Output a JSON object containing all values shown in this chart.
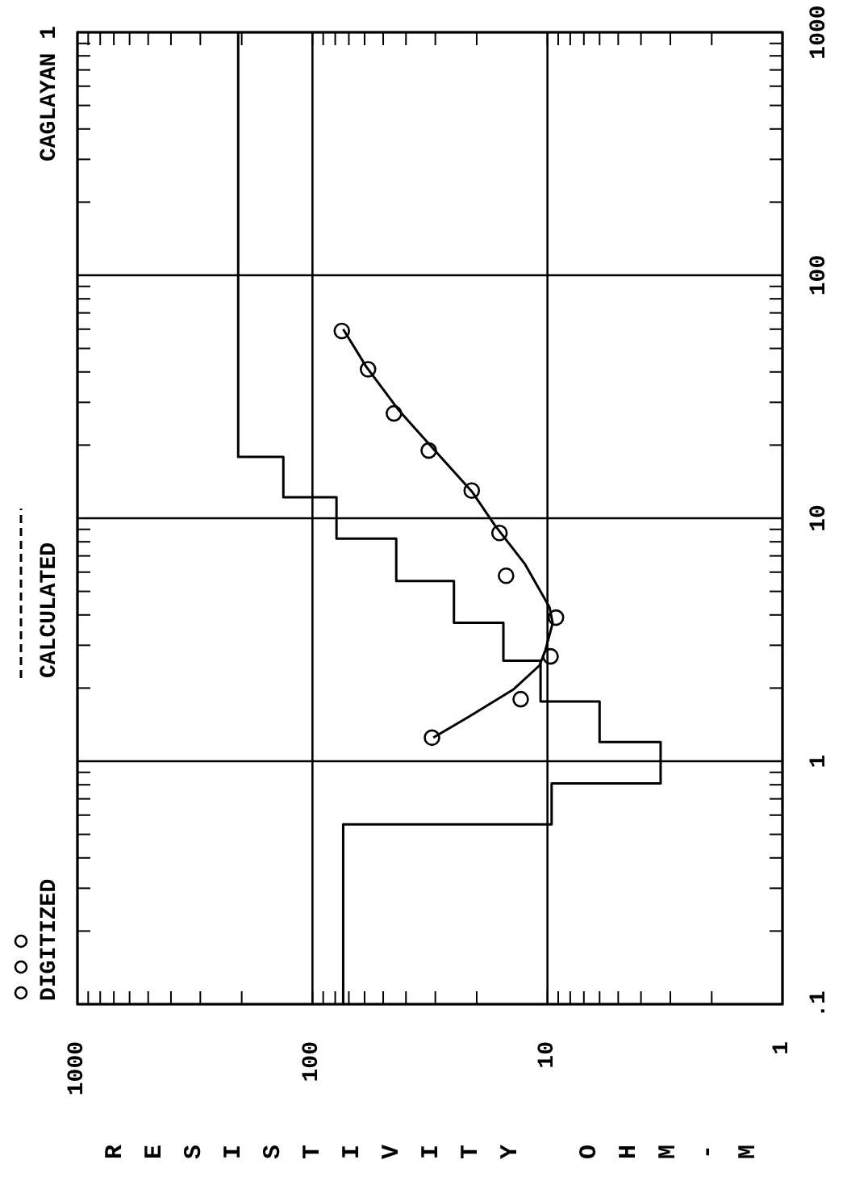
{
  "chart_data": {
    "type": "scatter",
    "title": "CAGLAYAN 1",
    "xlabel": "RESISTIVITY OHM-M",
    "log": "xy",
    "grid": true,
    "legend": "left",
    "xlim": [
      1000,
      1
    ],
    "ylim": [
      0.1,
      1000
    ],
    "xticks": [
      1,
      {
        "value": 2,
        "label": null
      },
      {
        "value": 3,
        "label": null
      },
      {
        "value": 4,
        "label": null
      },
      {
        "value": 5,
        "label": null
      },
      {
        "value": 6,
        "label": null
      },
      {
        "value": 7,
        "label": null
      },
      {
        "value": 8,
        "label": null
      },
      {
        "value": 9,
        "label": null
      },
      10,
      {
        "value": 20,
        "label": null
      },
      {
        "value": 30,
        "label": null
      },
      {
        "value": 40,
        "label": null
      },
      {
        "value": 50,
        "label": null
      },
      {
        "value": 60,
        "label": null
      },
      {
        "value": 70,
        "label": null
      },
      {
        "value": 80,
        "label": null
      },
      {
        "value": 90,
        "label": null
      },
      100,
      {
        "value": 200,
        "label": null
      },
      {
        "value": 300,
        "label": null
      },
      {
        "value": 400,
        "label": null
      },
      {
        "value": 500,
        "label": null
      },
      {
        "value": 600,
        "label": null
      },
      {
        "value": 700,
        "label": null
      },
      {
        "value": 800,
        "label": null
      },
      {
        "value": 900,
        "label": null
      },
      1000
    ],
    "yticks": [
      {
        "value": 0.1,
        "label": ".1"
      },
      {
        "value": 0.2,
        "label": null
      },
      {
        "value": 0.3,
        "label": null
      },
      {
        "value": 0.4,
        "label": null
      },
      {
        "value": 0.5,
        "label": null
      },
      {
        "value": 0.6,
        "label": null
      },
      {
        "value": 0.7,
        "label": null
      },
      {
        "value": 0.8,
        "label": null
      },
      {
        "value": 0.9,
        "label": null
      },
      1,
      {
        "value": 2,
        "label": null
      },
      {
        "value": 3,
        "label": null
      },
      {
        "value": 4,
        "label": null
      },
      {
        "value": 5,
        "label": null
      },
      {
        "value": 6,
        "label": null
      },
      {
        "value": 7,
        "label": null
      },
      {
        "value": 8,
        "label": null
      },
      {
        "value": 9,
        "label": null
      },
      10,
      {
        "value": 20,
        "label": null
      },
      {
        "value": 30,
        "label": null
      },
      {
        "value": 40,
        "label": null
      },
      {
        "value": 50,
        "label": null
      },
      {
        "value": 60,
        "label": null
      },
      {
        "value": 70,
        "label": null
      },
      {
        "value": 80,
        "label": null
      },
      {
        "value": 90,
        "label": null
      },
      100,
      {
        "value": 200,
        "label": null
      },
      {
        "value": 300,
        "label": null
      },
      {
        "value": 400,
        "label": null
      },
      {
        "value": 500,
        "label": null
      },
      {
        "value": 600,
        "label": null
      },
      {
        "value": 700,
        "label": null
      },
      {
        "value": 800,
        "label": null
      },
      {
        "value": 900,
        "label": null
      },
      1000
    ],
    "series": [
      {
        "name": "DIGITIZED",
        "marker": "circle",
        "color": "#000000",
        "x": [
          31,
          13,
          9.7,
          9.2,
          15,
          16,
          21,
          32,
          45,
          58,
          75
        ],
        "values": [
          1.25,
          1.8,
          2.7,
          3.9,
          5.8,
          8.7,
          13,
          19,
          27,
          41,
          59
        ]
      },
      {
        "name": "CALCULATED",
        "type": "line",
        "color": "#000000",
        "x": [
          30.6,
          21.7,
          13.9,
          10.8,
          10.2,
          9.5,
          9.8,
          12.5,
          16.8,
          21,
          30,
          43,
          59,
          74
        ],
        "values": [
          1.25,
          1.52,
          1.98,
          2.48,
          2.87,
          3.7,
          4.3,
          6.5,
          9.4,
          12.9,
          18.9,
          27.9,
          42,
          60
        ]
      },
      {
        "type": "line",
        "color": "#000000",
        "x": [
          74,
          74,
          9.6,
          9.6,
          3.3,
          3.3,
          6,
          6,
          10.7,
          10.7,
          15.4,
          15.4,
          25,
          25,
          44,
          44,
          79,
          79,
          133,
          133,
          207,
          207
        ],
        "values": [
          0.1,
          0.55,
          0.55,
          0.81,
          0.81,
          1.2,
          1.2,
          1.76,
          1.76,
          2.59,
          2.59,
          3.71,
          3.71,
          5.52,
          5.52,
          8.24,
          8.24,
          12.2,
          12.2,
          17.9,
          17.9,
          1000
        ]
      }
    ]
  }
}
